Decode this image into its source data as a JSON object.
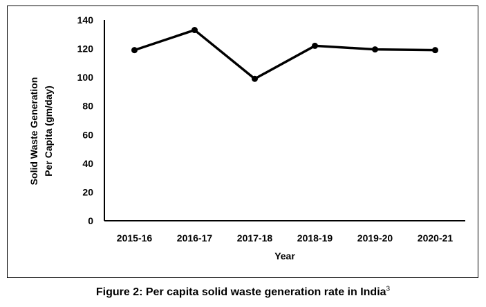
{
  "chart_data": {
    "type": "line",
    "categories": [
      "2015-16",
      "2016-17",
      "2017-18",
      "2018-19",
      "2019-20",
      "2020-21"
    ],
    "series": [
      {
        "values": [
          119,
          133,
          99,
          122,
          119.5,
          119
        ]
      }
    ],
    "xlabel": "Year",
    "ylabel_lines": [
      "Solid Waste Generation",
      "Per Capita (gm/day)"
    ],
    "ylim": [
      0,
      140
    ],
    "yticks": [
      0,
      20,
      40,
      60,
      80,
      100,
      120,
      140
    ],
    "grid": false,
    "line_color": "#000000"
  },
  "caption": {
    "text": "Figure 2: Per capita solid waste generation rate in India",
    "ref": "3"
  }
}
